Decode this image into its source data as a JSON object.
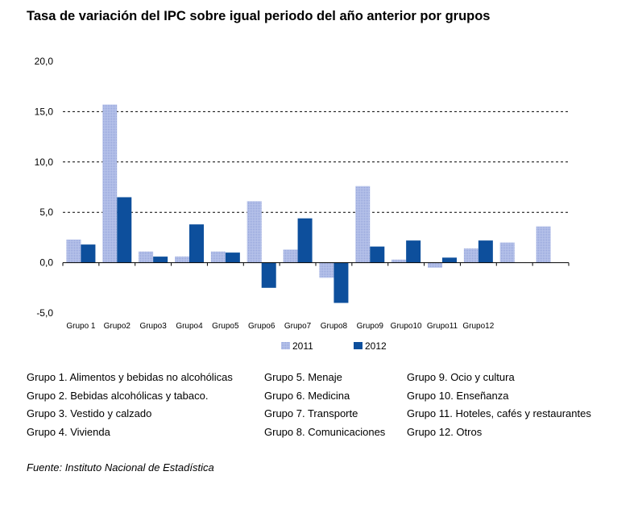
{
  "title": "Tasa de variación del IPC sobre igual periodo del año anterior por grupos",
  "chart_data": {
    "type": "bar",
    "categories": [
      "Grupo 1",
      "Grupo2",
      "Grupo3",
      "Grupo4",
      "Grupo5",
      "Grupo6",
      "Grupo7",
      "Grupo8",
      "Grupo9",
      "Grupo10",
      "Grupo11",
      "Grupo12"
    ],
    "series": [
      {
        "name": "2011",
        "color": "#a9b7e3",
        "values": [
          2.3,
          15.7,
          1.1,
          0.6,
          1.1,
          6.1,
          1.3,
          -1.5,
          7.6,
          0.3,
          -0.5,
          1.4
        ]
      },
      {
        "name": "2012",
        "color": "#0d4f9c",
        "values": [
          1.8,
          6.5,
          0.6,
          3.8,
          1.0,
          -2.5,
          4.4,
          -4.0,
          1.6,
          2.2,
          0.5,
          2.2
        ]
      }
    ],
    "extra_bars": [
      2.0,
      3.6
    ],
    "ylim": [
      -5,
      20
    ],
    "yticks": [
      "20,0",
      "15,0",
      "10,0",
      "5,0",
      "0,0",
      "-5,0"
    ],
    "ytick_values": [
      20,
      15,
      10,
      5,
      0,
      -5
    ],
    "grid": "dashed at 5, 10, 15",
    "legend_position": "bottom"
  },
  "groups": [
    "Grupo 1. Alimentos y bebidas no alcohólicas",
    "Grupo 2. Bebidas alcohólicas y  tabaco.",
    "Grupo 3. Vestido y calzado",
    "Grupo 4. Vivienda",
    "Grupo 5. Menaje",
    "Grupo 6. Medicina",
    "Grupo 7. Transporte",
    "Grupo 8. Comunicaciones",
    "Grupo 9. Ocio y cultura",
    "Grupo 10. Enseñanza",
    "Grupo 11. Hoteles, cafés y restaurantes",
    "Grupo 12. Otros"
  ],
  "source": "Fuente: Instituto Nacional de Estadística"
}
